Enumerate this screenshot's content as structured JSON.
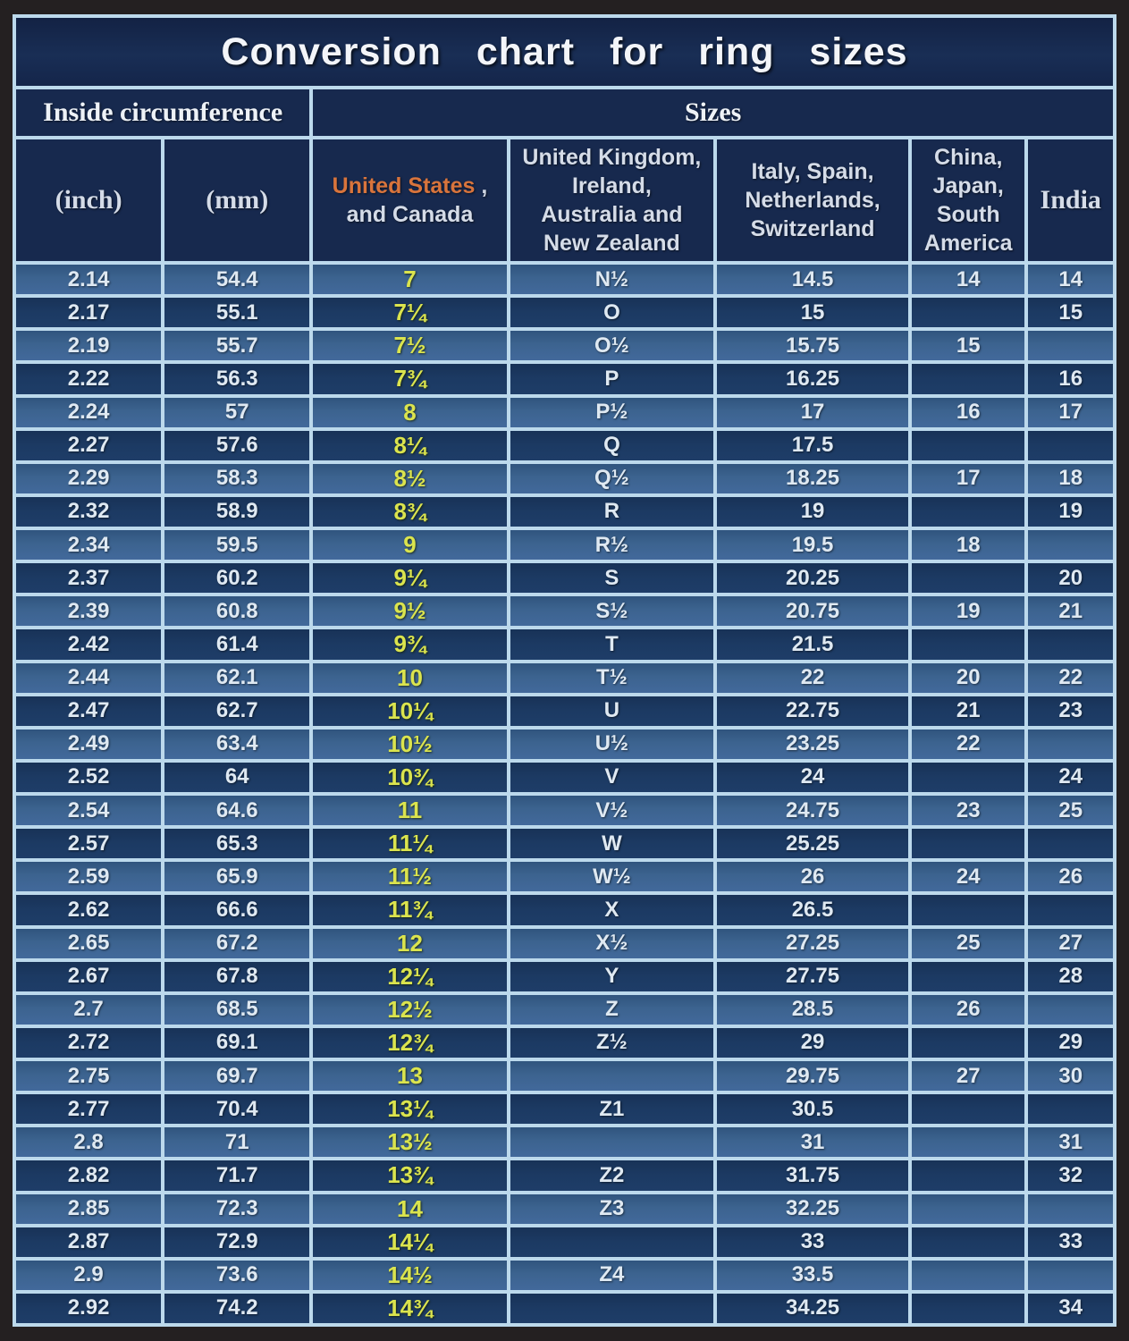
{
  "title": "Conversion  chart  for  ring  sizes",
  "header_groups": {
    "inside_circumference": "Inside circumference",
    "sizes": "Sizes"
  },
  "column_headers": {
    "inch": "(inch)",
    "mm": "(mm)",
    "us": {
      "highlight": "United States",
      "comma": " ,",
      "rest": "and Canada"
    },
    "uk": "United Kingdom,\nIreland,\nAustralia and\nNew Zealand",
    "italy": "Italy,  Spain,\nNetherlands,\nSwitzerland",
    "china": "China,\nJapan,\nSouth\nAmerica",
    "india": "India"
  },
  "colors": {
    "us_header_highlight": "#d8743c",
    "us_value_text": "#dbe44e",
    "row_light": "#3c638f",
    "row_dark": "#1c3a63",
    "grid_line": "#bcd9ec",
    "header_bg": "#17294e",
    "body_text": "#dfe9f2",
    "outer_frame": "#242021"
  },
  "chart_data": {
    "type": "table",
    "title": "Conversion chart for ring sizes",
    "column_groups": [
      {
        "label": "Inside circumference",
        "span": 2
      },
      {
        "label": "Sizes",
        "span": 5
      }
    ],
    "columns": [
      "(inch)",
      "(mm)",
      "United States , and Canada",
      "United Kingdom, Ireland, Australia and New Zealand",
      "Italy, Spain, Netherlands, Switzerland",
      "China, Japan, South America",
      "India"
    ],
    "rows": [
      [
        "2.14",
        "54.4",
        "7",
        "N½",
        "14.5",
        "14",
        "14"
      ],
      [
        "2.17",
        "55.1",
        "7¼",
        "O",
        "15",
        "",
        "15"
      ],
      [
        "2.19",
        "55.7",
        "7½",
        "O½",
        "15.75",
        "15",
        ""
      ],
      [
        "2.22",
        "56.3",
        "7¾",
        "P",
        "16.25",
        "",
        "16"
      ],
      [
        "2.24",
        "57",
        "8",
        "P½",
        "17",
        "16",
        "17"
      ],
      [
        "2.27",
        "57.6",
        "8¼",
        "Q",
        "17.5",
        "",
        ""
      ],
      [
        "2.29",
        "58.3",
        "8½",
        "Q½",
        "18.25",
        "17",
        "18"
      ],
      [
        "2.32",
        "58.9",
        "8¾",
        "R",
        "19",
        "",
        "19"
      ],
      [
        "2.34",
        "59.5",
        "9",
        "R½",
        "19.5",
        "18",
        ""
      ],
      [
        "2.37",
        "60.2",
        "9¼",
        "S",
        "20.25",
        "",
        "20"
      ],
      [
        "2.39",
        "60.8",
        "9½",
        "S½",
        "20.75",
        "19",
        "21"
      ],
      [
        "2.42",
        "61.4",
        "9¾",
        "T",
        "21.5",
        "",
        ""
      ],
      [
        "2.44",
        "62.1",
        "10",
        "T½",
        "22",
        "20",
        "22"
      ],
      [
        "2.47",
        "62.7",
        "10¼",
        "U",
        "22.75",
        "21",
        "23"
      ],
      [
        "2.49",
        "63.4",
        "10½",
        "U½",
        "23.25",
        "22",
        ""
      ],
      [
        "2.52",
        "64",
        "10¾",
        "V",
        "24",
        "",
        "24"
      ],
      [
        "2.54",
        "64.6",
        "11",
        "V½",
        "24.75",
        "23",
        "25"
      ],
      [
        "2.57",
        "65.3",
        "11¼",
        "W",
        "25.25",
        "",
        ""
      ],
      [
        "2.59",
        "65.9",
        "11½",
        "W½",
        "26",
        "24",
        "26"
      ],
      [
        "2.62",
        "66.6",
        "11¾",
        "X",
        "26.5",
        "",
        ""
      ],
      [
        "2.65",
        "67.2",
        "12",
        "X½",
        "27.25",
        "25",
        "27"
      ],
      [
        "2.67",
        "67.8",
        "12¼",
        "Y",
        "27.75",
        "",
        "28"
      ],
      [
        "2.7",
        "68.5",
        "12½",
        "Z",
        "28.5",
        "26",
        ""
      ],
      [
        "2.72",
        "69.1",
        "12¾",
        "Z½",
        "29",
        "",
        "29"
      ],
      [
        "2.75",
        "69.7",
        "13",
        "",
        "29.75",
        "27",
        "30"
      ],
      [
        "2.77",
        "70.4",
        "13¼",
        "Z1",
        "30.5",
        "",
        ""
      ],
      [
        "2.8",
        "71",
        "13½",
        "",
        "31",
        "",
        "31"
      ],
      [
        "2.82",
        "71.7",
        "13¾",
        "Z2",
        "31.75",
        "",
        "32"
      ],
      [
        "2.85",
        "72.3",
        "14",
        "Z3",
        "32.25",
        "",
        ""
      ],
      [
        "2.87",
        "72.9",
        "14¼",
        "",
        "33",
        "",
        "33"
      ],
      [
        "2.9",
        "73.6",
        "14½",
        "Z4",
        "33.5",
        "",
        ""
      ],
      [
        "2.92",
        "74.2",
        "14¾",
        "",
        "34.25",
        "",
        "34"
      ]
    ]
  }
}
